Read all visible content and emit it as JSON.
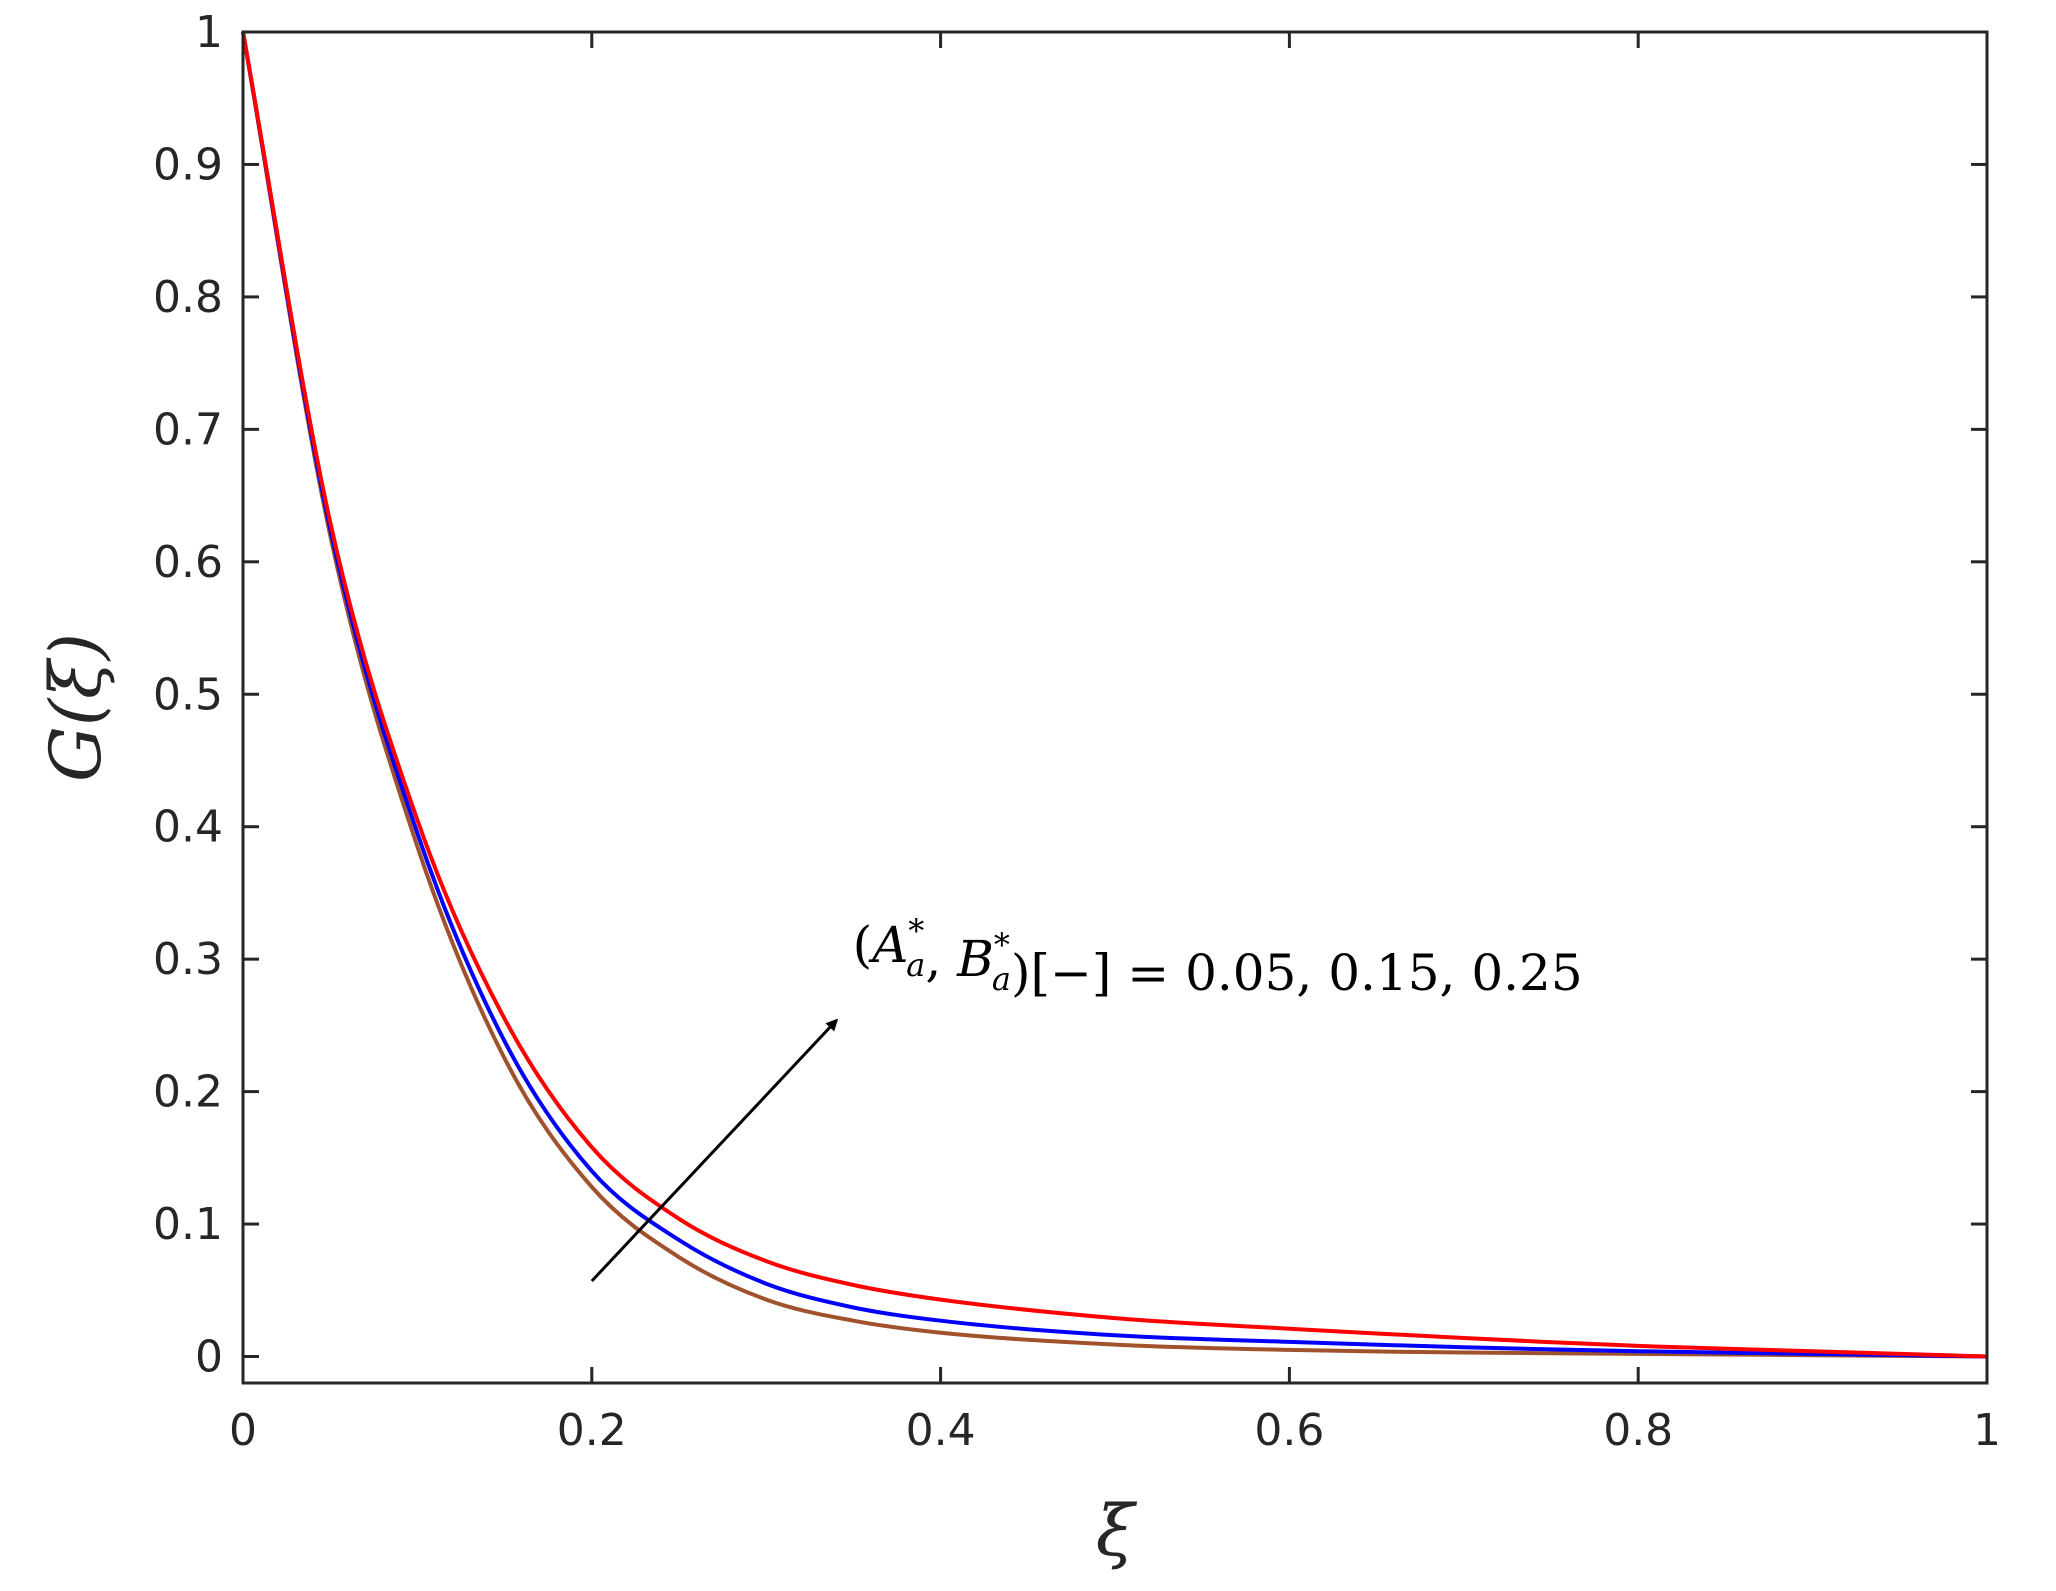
{
  "chart_data": {
    "type": "line",
    "title": "",
    "xlabel": "ξ",
    "ylabel": "G(ξ)",
    "xlim": [
      0,
      1
    ],
    "ylim": [
      -0.02,
      1
    ],
    "xticks": [
      0,
      0.2,
      0.4,
      0.6,
      0.8,
      1
    ],
    "xtick_labels": [
      "0",
      "0.2",
      "0.4",
      "0.6",
      "0.8",
      "1"
    ],
    "yticks": [
      0,
      0.1,
      0.2,
      0.3,
      0.4,
      0.5,
      0.6,
      0.7,
      0.8,
      0.9,
      1
    ],
    "ytick_labels": [
      "0",
      "0.1",
      "0.2",
      "0.3",
      "0.4",
      "0.5",
      "0.6",
      "0.7",
      "0.8",
      "0.9",
      "1"
    ],
    "grid": false,
    "legend": "none",
    "x": [
      0,
      0.05,
      0.1,
      0.15,
      0.2,
      0.25,
      0.3,
      0.35,
      0.4,
      0.5,
      0.6,
      0.7,
      0.8,
      0.9,
      1.0
    ],
    "series": [
      {
        "color": "#a0522d",
        "values": [
          1.0,
          0.62,
          0.385,
          0.225,
          0.128,
          0.075,
          0.043,
          0.027,
          0.018,
          0.009,
          0.005,
          0.003,
          0.002,
          0.001,
          0.0
        ]
      },
      {
        "color": "#0000ff",
        "values": [
          1.0,
          0.625,
          0.395,
          0.238,
          0.14,
          0.088,
          0.055,
          0.037,
          0.027,
          0.016,
          0.011,
          0.007,
          0.004,
          0.002,
          0.0
        ]
      },
      {
        "color": "#ff0000",
        "values": [
          1.0,
          0.63,
          0.405,
          0.255,
          0.158,
          0.104,
          0.072,
          0.054,
          0.043,
          0.029,
          0.021,
          0.014,
          0.008,
          0.004,
          0.0
        ]
      }
    ],
    "annotation": {
      "text": "(A*a, B*a)[−] = 0.05, 0.15, 0.25",
      "arrow_from": [
        0.2,
        0.057
      ],
      "arrow_to": [
        0.345,
        0.26
      ]
    }
  }
}
